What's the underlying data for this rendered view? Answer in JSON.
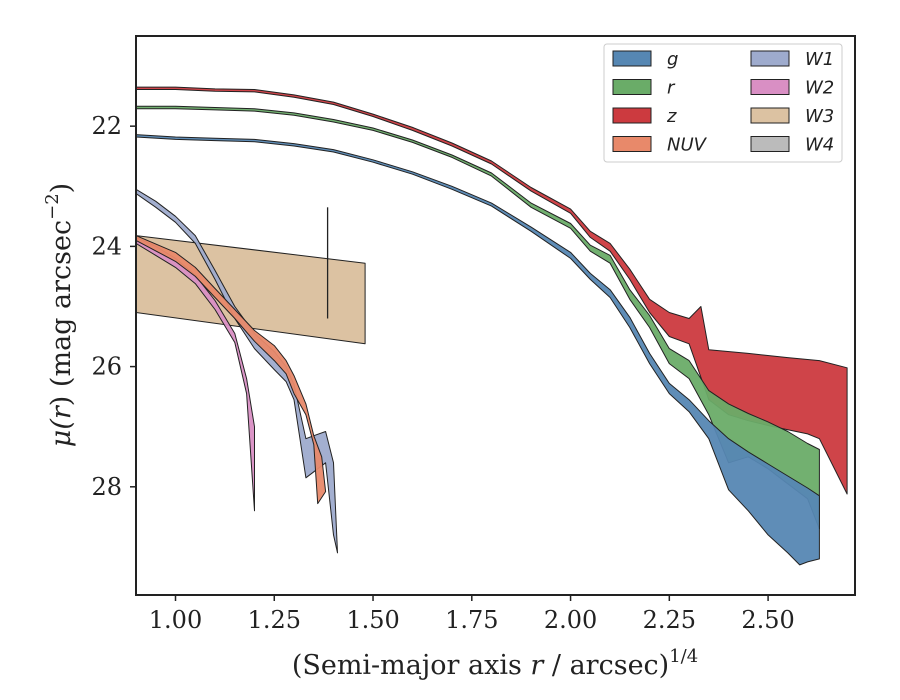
{
  "chart_data": {
    "type": "area",
    "title": "",
    "xlabel": {
      "main": "(Semi-major axis ",
      "var": "r",
      "mid": " / arcsec)",
      "sup": "1/4"
    },
    "ylabel": {
      "mu": "μ(",
      "var": "r",
      "rest": ") (mag arcsec",
      "sup": "−2",
      "end": ")"
    },
    "xlim": [
      0.9,
      2.72
    ],
    "ylim": [
      29.8,
      20.5
    ],
    "y_inverted": true,
    "xticks": [
      1.0,
      1.25,
      1.5,
      1.75,
      2.0,
      2.25,
      2.5
    ],
    "xtick_labels": [
      "1.00",
      "1.25",
      "1.50",
      "1.75",
      "2.00",
      "2.25",
      "2.50"
    ],
    "yticks": [
      22,
      24,
      26,
      28
    ],
    "ytick_labels": [
      "22",
      "24",
      "26",
      "28"
    ],
    "legend": {
      "placement": "top-right",
      "columns": 2
    },
    "grid": false,
    "series": [
      {
        "name": "g",
        "color": "#5687b3",
        "upper": [
          [
            0.9,
            22.14
          ],
          [
            1.0,
            22.18
          ],
          [
            1.1,
            22.2
          ],
          [
            1.2,
            22.22
          ],
          [
            1.3,
            22.29
          ],
          [
            1.4,
            22.39
          ],
          [
            1.5,
            22.56
          ],
          [
            1.6,
            22.76
          ],
          [
            1.7,
            23.0
          ],
          [
            1.8,
            23.28
          ],
          [
            1.9,
            23.68
          ],
          [
            2.0,
            24.1
          ],
          [
            2.05,
            24.45
          ],
          [
            2.1,
            24.72
          ],
          [
            2.15,
            25.18
          ],
          [
            2.2,
            25.78
          ],
          [
            2.25,
            26.28
          ],
          [
            2.3,
            26.55
          ],
          [
            2.35,
            26.9
          ],
          [
            2.4,
            27.2
          ],
          [
            2.45,
            27.42
          ],
          [
            2.5,
            27.62
          ],
          [
            2.55,
            27.82
          ],
          [
            2.6,
            28.02
          ],
          [
            2.63,
            28.15
          ]
        ],
        "lower": [
          [
            0.9,
            22.18
          ],
          [
            1.0,
            22.22
          ],
          [
            1.1,
            22.24
          ],
          [
            1.2,
            22.26
          ],
          [
            1.3,
            22.33
          ],
          [
            1.4,
            22.43
          ],
          [
            1.5,
            22.6
          ],
          [
            1.6,
            22.8
          ],
          [
            1.7,
            23.05
          ],
          [
            1.8,
            23.33
          ],
          [
            1.9,
            23.75
          ],
          [
            2.0,
            24.2
          ],
          [
            2.05,
            24.55
          ],
          [
            2.1,
            24.85
          ],
          [
            2.15,
            25.35
          ],
          [
            2.2,
            25.95
          ],
          [
            2.25,
            26.45
          ],
          [
            2.3,
            26.75
          ],
          [
            2.35,
            27.2
          ],
          [
            2.4,
            28.05
          ],
          [
            2.45,
            28.4
          ],
          [
            2.5,
            28.8
          ],
          [
            2.55,
            29.1
          ],
          [
            2.58,
            29.3
          ],
          [
            2.6,
            29.25
          ],
          [
            2.63,
            29.2
          ]
        ]
      },
      {
        "name": "r",
        "color": "#6aac68",
        "upper": [
          [
            0.9,
            21.67
          ],
          [
            1.0,
            21.67
          ],
          [
            1.1,
            21.69
          ],
          [
            1.2,
            21.71
          ],
          [
            1.3,
            21.78
          ],
          [
            1.4,
            21.89
          ],
          [
            1.5,
            22.03
          ],
          [
            1.6,
            22.23
          ],
          [
            1.7,
            22.48
          ],
          [
            1.8,
            22.78
          ],
          [
            1.9,
            23.28
          ],
          [
            2.0,
            23.62
          ],
          [
            2.05,
            23.98
          ],
          [
            2.1,
            24.15
          ],
          [
            2.15,
            24.72
          ],
          [
            2.2,
            25.15
          ],
          [
            2.25,
            25.7
          ],
          [
            2.3,
            25.9
          ],
          [
            2.35,
            26.4
          ],
          [
            2.4,
            26.62
          ],
          [
            2.45,
            26.78
          ],
          [
            2.5,
            26.92
          ],
          [
            2.55,
            27.08
          ],
          [
            2.6,
            27.28
          ],
          [
            2.63,
            27.38
          ]
        ],
        "lower": [
          [
            0.9,
            21.71
          ],
          [
            1.0,
            21.71
          ],
          [
            1.1,
            21.73
          ],
          [
            1.2,
            21.75
          ],
          [
            1.3,
            21.82
          ],
          [
            1.4,
            21.93
          ],
          [
            1.5,
            22.07
          ],
          [
            1.6,
            22.27
          ],
          [
            1.7,
            22.52
          ],
          [
            1.8,
            22.83
          ],
          [
            1.9,
            23.35
          ],
          [
            2.0,
            23.7
          ],
          [
            2.05,
            24.08
          ],
          [
            2.1,
            24.28
          ],
          [
            2.15,
            24.88
          ],
          [
            2.2,
            25.35
          ],
          [
            2.25,
            25.95
          ],
          [
            2.3,
            26.2
          ],
          [
            2.35,
            26.8
          ],
          [
            2.4,
            27.6
          ],
          [
            2.45,
            27.5
          ],
          [
            2.5,
            27.7
          ],
          [
            2.55,
            27.95
          ],
          [
            2.6,
            28.2
          ],
          [
            2.63,
            28.7
          ]
        ]
      },
      {
        "name": "z",
        "color": "#cc3a3f",
        "upper": [
          [
            0.9,
            21.35
          ],
          [
            1.0,
            21.35
          ],
          [
            1.1,
            21.38
          ],
          [
            1.2,
            21.39
          ],
          [
            1.3,
            21.48
          ],
          [
            1.4,
            21.6
          ],
          [
            1.5,
            21.8
          ],
          [
            1.6,
            22.02
          ],
          [
            1.7,
            22.28
          ],
          [
            1.8,
            22.58
          ],
          [
            1.9,
            23.02
          ],
          [
            2.0,
            23.38
          ],
          [
            2.05,
            23.75
          ],
          [
            2.1,
            23.95
          ],
          [
            2.15,
            24.38
          ],
          [
            2.2,
            24.88
          ],
          [
            2.25,
            25.1
          ],
          [
            2.3,
            25.2
          ],
          [
            2.33,
            25.0
          ],
          [
            2.35,
            25.72
          ],
          [
            2.45,
            25.78
          ],
          [
            2.55,
            25.85
          ],
          [
            2.63,
            25.9
          ],
          [
            2.7,
            26.02
          ]
        ],
        "lower": [
          [
            0.9,
            21.39
          ],
          [
            1.0,
            21.39
          ],
          [
            1.1,
            21.42
          ],
          [
            1.2,
            21.43
          ],
          [
            1.3,
            21.52
          ],
          [
            1.4,
            21.64
          ],
          [
            1.5,
            21.84
          ],
          [
            1.6,
            22.07
          ],
          [
            1.7,
            22.33
          ],
          [
            1.8,
            22.63
          ],
          [
            1.9,
            23.08
          ],
          [
            2.0,
            23.45
          ],
          [
            2.05,
            23.85
          ],
          [
            2.1,
            24.08
          ],
          [
            2.15,
            24.55
          ],
          [
            2.2,
            25.1
          ],
          [
            2.25,
            25.5
          ],
          [
            2.3,
            25.62
          ],
          [
            2.35,
            26.55
          ],
          [
            2.4,
            26.8
          ],
          [
            2.45,
            26.9
          ],
          [
            2.5,
            26.98
          ],
          [
            2.55,
            27.05
          ],
          [
            2.6,
            27.12
          ],
          [
            2.63,
            27.2
          ],
          [
            2.7,
            28.12
          ]
        ]
      },
      {
        "name": "NUV",
        "color": "#e8896a",
        "upper": [
          [
            0.9,
            23.82
          ],
          [
            1.0,
            24.1
          ],
          [
            1.05,
            24.35
          ],
          [
            1.1,
            24.7
          ],
          [
            1.15,
            25.05
          ],
          [
            1.2,
            25.4
          ],
          [
            1.25,
            25.65
          ],
          [
            1.28,
            25.9
          ],
          [
            1.3,
            26.15
          ],
          [
            1.33,
            26.62
          ],
          [
            1.35,
            27.15
          ],
          [
            1.37,
            27.5
          ],
          [
            1.38,
            28.08
          ]
        ],
        "lower": [
          [
            0.9,
            23.9
          ],
          [
            1.0,
            24.25
          ],
          [
            1.05,
            24.5
          ],
          [
            1.1,
            24.85
          ],
          [
            1.15,
            25.2
          ],
          [
            1.2,
            25.58
          ],
          [
            1.25,
            25.9
          ],
          [
            1.28,
            26.12
          ],
          [
            1.3,
            26.45
          ],
          [
            1.33,
            26.8
          ],
          [
            1.35,
            27.3
          ],
          [
            1.36,
            28.28
          ]
        ]
      },
      {
        "name": "W1",
        "color": "#9eabcd",
        "upper": [
          [
            0.9,
            23.05
          ],
          [
            0.95,
            23.25
          ],
          [
            1.0,
            23.5
          ],
          [
            1.05,
            23.82
          ],
          [
            1.1,
            24.4
          ],
          [
            1.15,
            25.0
          ],
          [
            1.2,
            25.45
          ],
          [
            1.25,
            25.75
          ],
          [
            1.28,
            26.0
          ],
          [
            1.3,
            26.3
          ],
          [
            1.33,
            27.2
          ],
          [
            1.35,
            27.15
          ],
          [
            1.38,
            27.08
          ],
          [
            1.4,
            27.6
          ],
          [
            1.41,
            29.1
          ]
        ],
        "lower": [
          [
            0.9,
            23.12
          ],
          [
            0.95,
            23.35
          ],
          [
            1.0,
            23.6
          ],
          [
            1.05,
            23.95
          ],
          [
            1.1,
            24.55
          ],
          [
            1.15,
            25.2
          ],
          [
            1.2,
            25.7
          ],
          [
            1.25,
            26.05
          ],
          [
            1.28,
            26.25
          ],
          [
            1.3,
            26.55
          ],
          [
            1.33,
            27.85
          ],
          [
            1.35,
            27.75
          ],
          [
            1.38,
            27.6
          ],
          [
            1.4,
            28.8
          ],
          [
            1.41,
            29.1
          ]
        ]
      },
      {
        "name": "W2",
        "color": "#d98fc4",
        "upper": [
          [
            0.9,
            23.85
          ],
          [
            0.95,
            24.0
          ],
          [
            1.0,
            24.2
          ],
          [
            1.05,
            24.48
          ],
          [
            1.1,
            24.9
          ],
          [
            1.15,
            25.45
          ],
          [
            1.18,
            26.2
          ],
          [
            1.2,
            27.0
          ],
          [
            1.2,
            28.4
          ]
        ],
        "lower": [
          [
            0.9,
            23.95
          ],
          [
            0.95,
            24.15
          ],
          [
            1.0,
            24.35
          ],
          [
            1.05,
            24.62
          ],
          [
            1.1,
            25.05
          ],
          [
            1.15,
            25.6
          ],
          [
            1.18,
            26.45
          ],
          [
            1.2,
            28.4
          ]
        ]
      },
      {
        "name": "W3",
        "color": "#dcc2a2",
        "upper": [
          [
            0.9,
            23.82
          ],
          [
            1.48,
            24.28
          ]
        ],
        "lower": [
          [
            0.9,
            25.1
          ],
          [
            1.48,
            25.62
          ]
        ]
      },
      {
        "name": "W4",
        "color": "#bbbbbb",
        "upper": [],
        "lower": []
      }
    ],
    "markers": [
      {
        "type": "vline",
        "x": 1.385,
        "y_from": 23.35,
        "y_to": 25.2,
        "color": "#222222"
      }
    ]
  }
}
